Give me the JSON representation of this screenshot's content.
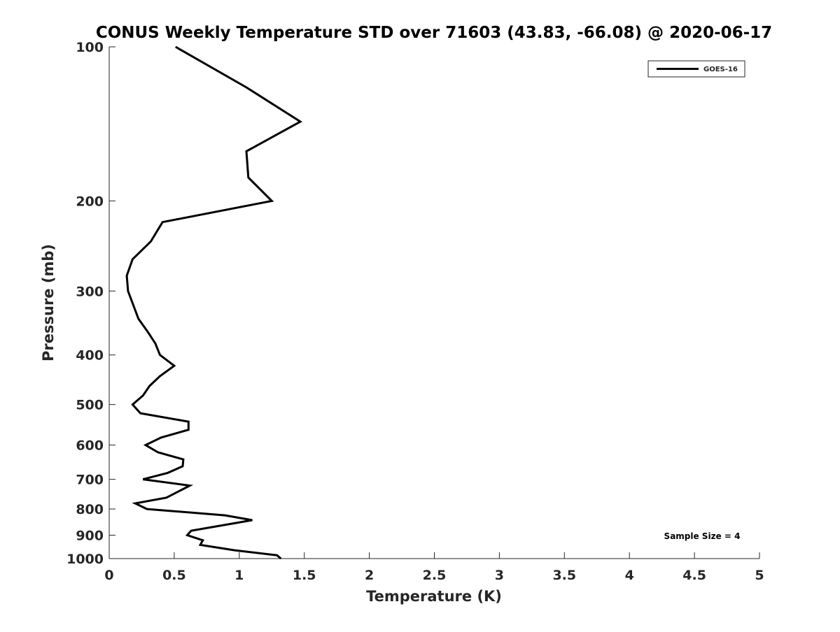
{
  "chart_data": {
    "type": "line",
    "title": "CONUS Weekly Temperature STD over 71603 (43.83, -66.08) @ 2020-06-17",
    "xlabel": "Temperature (K)",
    "ylabel": "Pressure (mb)",
    "xlim": [
      0,
      5
    ],
    "ylim": [
      100,
      1000
    ],
    "yscale": "log",
    "yreversed": true,
    "grid": false,
    "xticks": [
      "0",
      "0.5",
      "1",
      "1.5",
      "2",
      "2.5",
      "3",
      "3.5",
      "4",
      "4.5",
      "5"
    ],
    "yticks": [
      "100",
      "200",
      "300",
      "400",
      "500",
      "600",
      "700",
      "800",
      "900",
      "1000"
    ],
    "legend": {
      "placement": "top-right",
      "entries": [
        "GOES-16"
      ]
    },
    "annotation": "Sample Size = 4",
    "series": [
      {
        "name": "GOES-16",
        "color": "#000000",
        "x": [
          0.51,
          1.055,
          1.47,
          1.055,
          1.07,
          1.25,
          0.41,
          0.32,
          0.18,
          0.135,
          0.145,
          0.225,
          0.295,
          0.355,
          0.39,
          0.5,
          0.39,
          0.31,
          0.26,
          0.18,
          0.24,
          0.61,
          0.61,
          0.4,
          0.28,
          0.375,
          0.57,
          0.565,
          0.45,
          0.26,
          0.62,
          0.44,
          0.2,
          0.29,
          0.89,
          1.1,
          0.63,
          0.6,
          0.72,
          0.7,
          0.96,
          1.29,
          1.32
        ],
        "y": [
          100,
          120,
          140,
          160,
          180,
          200,
          220,
          240,
          260,
          280,
          300,
          340,
          360,
          380,
          400,
          420,
          440,
          460,
          480,
          500,
          520,
          540,
          560,
          580,
          600,
          620,
          640,
          660,
          680,
          700,
          720,
          760,
          780,
          800,
          823,
          841,
          882,
          900,
          921,
          940,
          963,
          985,
          1000
        ]
      }
    ]
  }
}
